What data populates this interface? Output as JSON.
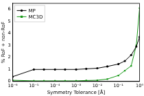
{
  "chart_data": {
    "type": "line",
    "x_label": "Symmetry Tolerance [Å]",
    "y_label": "% RoF + non-RoF",
    "x": [
      1e-06,
      1e-05,
      3e-05,
      0.0001,
      0.0003,
      0.001,
      0.003,
      0.01,
      0.03,
      0.1,
      0.2,
      0.4,
      0.7,
      1.0
    ],
    "series": [
      {
        "name": "MP",
        "color": "#000000",
        "marker": "circle",
        "line_style": "solid",
        "values": [
          0.4,
          1.0,
          1.0,
          1.0,
          1.0,
          1.0,
          1.05,
          1.1,
          1.25,
          1.45,
          1.7,
          2.2,
          2.9,
          3.7
        ]
      },
      {
        "name": "MC3D",
        "color": "#1a9a1a",
        "marker": "square",
        "line_style": "solid",
        "values": [
          0.1,
          0.05,
          0.05,
          0.05,
          0.05,
          0.05,
          0.08,
          0.1,
          0.2,
          0.5,
          0.9,
          1.3,
          3.0,
          6.1
        ]
      }
    ],
    "log": "x",
    "xlim": [
      1e-06,
      1
    ],
    "xticks": [
      {
        "value": 1e-06,
        "label": "10⁻⁶"
      },
      {
        "value": 1e-05,
        "label": "10⁻⁵"
      },
      {
        "value": 0.0001,
        "label": "10⁻⁴"
      },
      {
        "value": 0.001,
        "label": "10⁻³"
      },
      {
        "value": 0.01,
        "label": "10⁻²"
      },
      {
        "value": 0.1,
        "label": "10⁻¹"
      },
      {
        "value": 1,
        "label": "10⁰"
      }
    ],
    "ylim": [
      0,
      6.5
    ],
    "yticks": [
      0,
      1,
      2,
      3,
      4,
      5,
      6
    ],
    "grid": false,
    "legend": "upper left"
  }
}
